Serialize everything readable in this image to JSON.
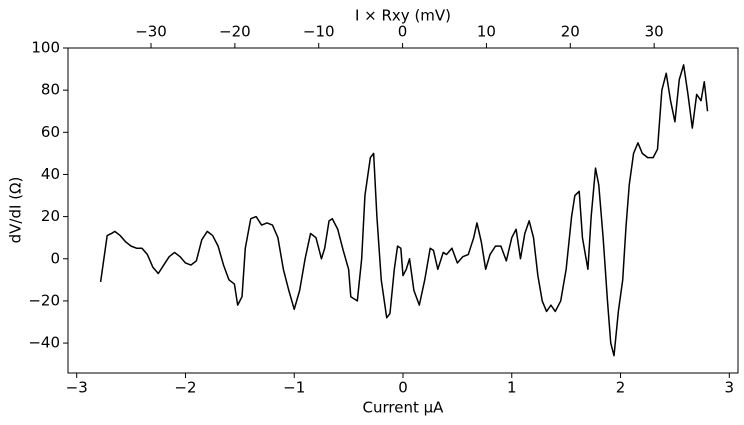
{
  "chart_data": {
    "type": "line",
    "xlabel": "Current μA",
    "ylabel": "dV/dI (Ω)",
    "x2label": "I × Rxy (mV)",
    "color": "#000000",
    "xlim": [
      -3.08,
      3.08
    ],
    "xticks": [
      {
        "value": -3,
        "label": "−3"
      },
      {
        "value": -2,
        "label": "−2"
      },
      {
        "value": -1,
        "label": "−1"
      },
      0,
      1,
      2,
      3
    ],
    "x2lim": [
      -39.9,
      40.0
    ],
    "x2ticks": [
      {
        "value": -30,
        "label": "−30"
      },
      {
        "value": -20,
        "label": "−20"
      },
      {
        "value": -10,
        "label": "−10"
      },
      0,
      10,
      20,
      30
    ],
    "ylim": [
      -54.2,
      100
    ],
    "yticks": [
      {
        "value": -40,
        "label": "−40"
      },
      {
        "value": -20,
        "label": "−20"
      },
      0,
      20,
      40,
      60,
      80,
      100
    ],
    "x": [
      -2.78,
      -2.75,
      -2.72,
      -2.68,
      -2.65,
      -2.6,
      -2.55,
      -2.5,
      -2.45,
      -2.4,
      -2.35,
      -2.3,
      -2.25,
      -2.2,
      -2.15,
      -2.1,
      -2.05,
      -2.0,
      -1.95,
      -1.9,
      -1.85,
      -1.8,
      -1.75,
      -1.7,
      -1.65,
      -1.6,
      -1.55,
      -1.52,
      -1.48,
      -1.45,
      -1.4,
      -1.35,
      -1.3,
      -1.25,
      -1.2,
      -1.15,
      -1.1,
      -1.05,
      -1.0,
      -0.95,
      -0.9,
      -0.85,
      -0.8,
      -0.75,
      -0.72,
      -0.68,
      -0.65,
      -0.6,
      -0.55,
      -0.5,
      -0.48,
      -0.42,
      -0.38,
      -0.35,
      -0.3,
      -0.27,
      -0.24,
      -0.2,
      -0.15,
      -0.12,
      -0.08,
      -0.05,
      -0.02,
      0.0,
      0.03,
      0.06,
      0.1,
      0.15,
      0.2,
      0.25,
      0.28,
      0.32,
      0.37,
      0.4,
      0.45,
      0.5,
      0.55,
      0.6,
      0.65,
      0.68,
      0.72,
      0.76,
      0.8,
      0.85,
      0.9,
      0.95,
      1.0,
      1.04,
      1.08,
      1.12,
      1.16,
      1.2,
      1.24,
      1.28,
      1.32,
      1.36,
      1.4,
      1.45,
      1.5,
      1.55,
      1.58,
      1.62,
      1.65,
      1.7,
      1.73,
      1.77,
      1.8,
      1.84,
      1.88,
      1.91,
      1.94,
      1.98,
      2.02,
      2.05,
      2.08,
      2.12,
      2.16,
      2.2,
      2.25,
      2.3,
      2.34,
      2.38,
      2.42,
      2.46,
      2.5,
      2.54,
      2.58,
      2.62,
      2.66,
      2.7,
      2.74,
      2.77,
      2.8
    ],
    "values": [
      -11,
      0,
      11,
      12,
      13,
      11,
      8,
      6,
      5,
      5,
      2,
      -4,
      -7,
      -3,
      1,
      3,
      1,
      -2,
      -3,
      -1,
      9,
      13,
      11,
      6,
      -3,
      -10,
      -12,
      -22,
      -18,
      5,
      19,
      20,
      16,
      17,
      16,
      10,
      -5,
      -15,
      -24,
      -15,
      0,
      12,
      10,
      0,
      5,
      18,
      19,
      14,
      4,
      -5,
      -18,
      -20,
      0,
      30,
      48,
      50,
      20,
      -10,
      -28,
      -26,
      -5,
      6,
      5,
      -8,
      -5,
      0,
      -15,
      -22,
      -10,
      5,
      4,
      -5,
      3,
      2,
      5,
      -2,
      1,
      2,
      10,
      17,
      8,
      -5,
      2,
      6,
      6,
      -1,
      10,
      14,
      0,
      12,
      18,
      10,
      -8,
      -20,
      -25,
      -22,
      -25,
      -20,
      -5,
      20,
      30,
      32,
      10,
      -5,
      20,
      43,
      35,
      10,
      -20,
      -40,
      -46,
      -25,
      -10,
      15,
      35,
      50,
      55,
      50,
      48,
      48,
      52,
      80,
      88,
      75,
      65,
      85,
      92,
      78,
      62,
      78,
      75,
      84,
      70
    ]
  }
}
